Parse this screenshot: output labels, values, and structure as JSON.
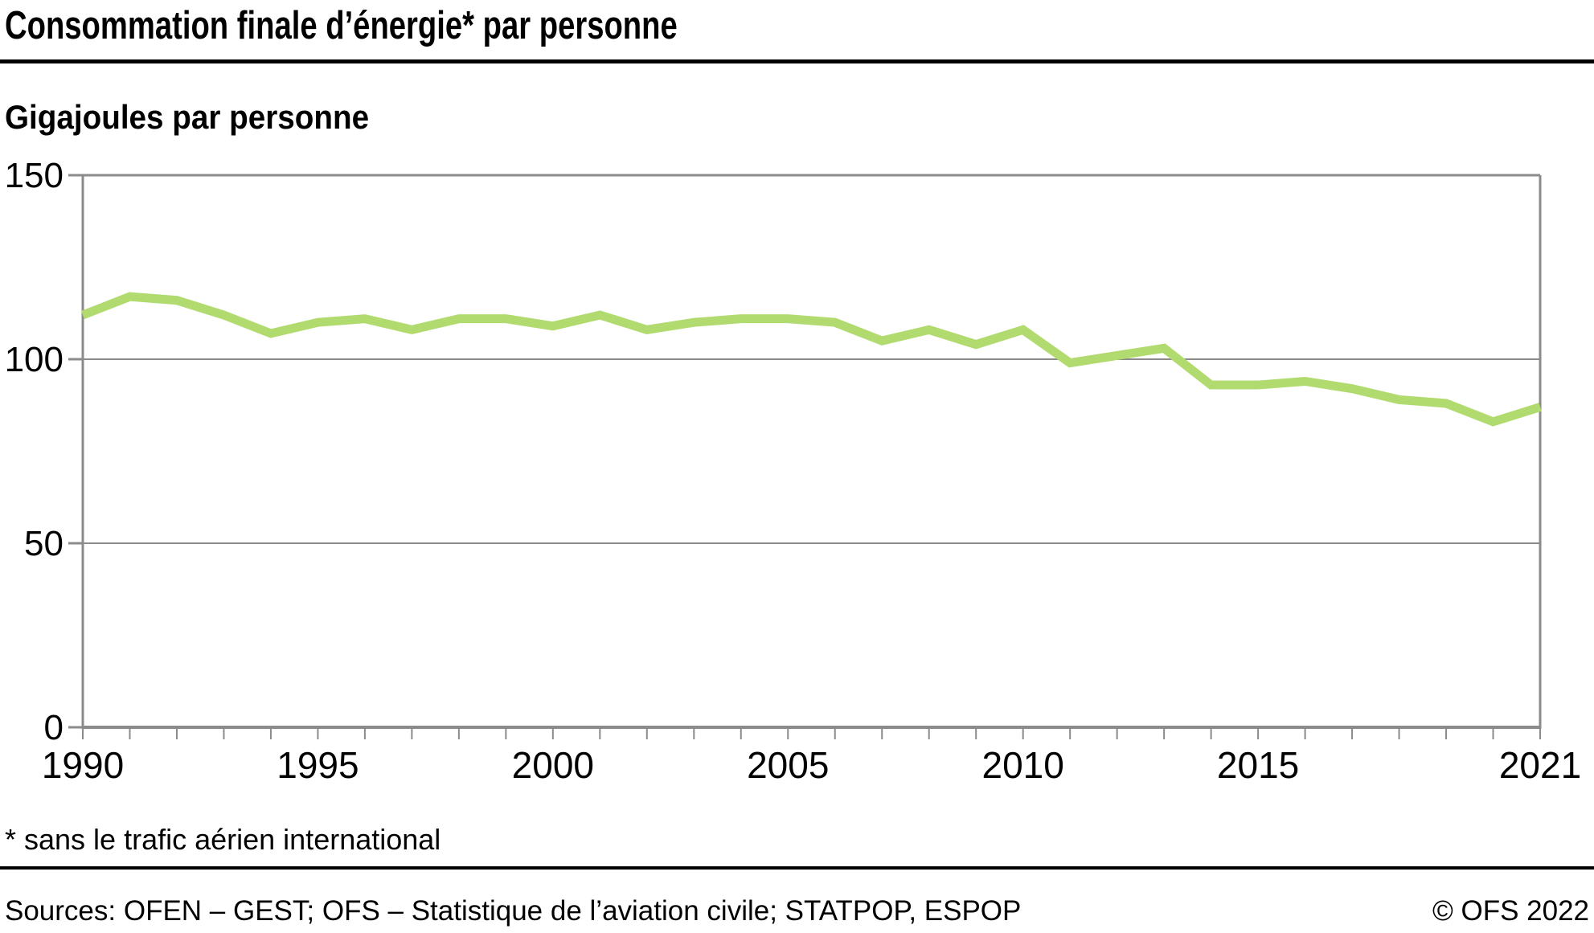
{
  "header": {
    "title": "Consommation finale d’énergie* par personne"
  },
  "chart_data": {
    "type": "line",
    "title": "Consommation finale d’énergie* par personne",
    "ylabel": "Gigajoules par personne",
    "xlabel": "",
    "x": [
      1990,
      1991,
      1992,
      1993,
      1994,
      1995,
      1996,
      1997,
      1998,
      1999,
      2000,
      2001,
      2002,
      2003,
      2004,
      2005,
      2006,
      2007,
      2008,
      2009,
      2010,
      2011,
      2012,
      2013,
      2014,
      2015,
      2016,
      2017,
      2018,
      2019,
      2020,
      2021
    ],
    "series": [
      {
        "name": "Consommation finale d’énergie par personne (GJ)",
        "values": [
          112,
          117,
          116,
          112,
          107,
          110,
          111,
          108,
          111,
          111,
          109,
          112,
          108,
          110,
          111,
          111,
          110,
          105,
          108,
          104,
          108,
          99,
          101,
          103,
          93,
          93,
          94,
          92,
          89,
          88,
          83,
          87
        ]
      }
    ],
    "ylim": [
      0,
      150
    ],
    "yticks": [
      0,
      50,
      100,
      150
    ],
    "xtick_labels": [
      1990,
      1995,
      2000,
      2005,
      2010,
      2015,
      2021
    ],
    "grid": true,
    "legend": "none",
    "line_color": "#b1db6f",
    "axis_color": "#8b8b8b",
    "tick_label_color": "#000000"
  },
  "footer": {
    "footnote": "* sans le trafic aérien international",
    "sources": "Sources: OFEN – GEST; OFS – Statistique de l’aviation civile; STATPOP, ESPOP",
    "copyright": "© OFS 2022"
  }
}
